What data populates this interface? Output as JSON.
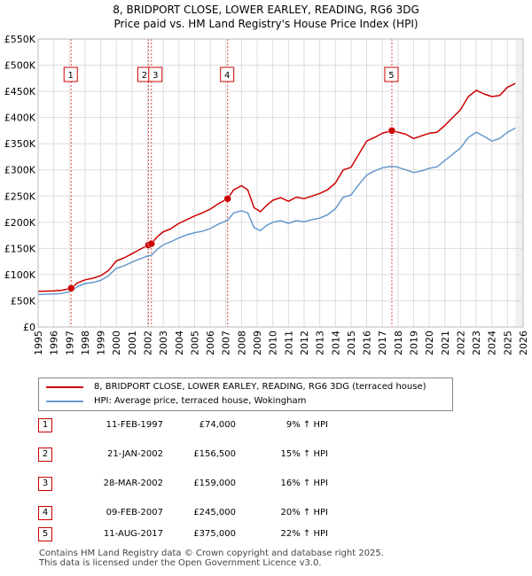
{
  "title_line1": "8, BRIDPORT CLOSE, LOWER EARLEY, READING, RG6 3DG",
  "title_line2": "Price paid vs. HM Land Registry's House Price Index (HPI)",
  "colors": {
    "price": "#cc0000",
    "hpi": "#6699cc",
    "marker": "#cc0000",
    "grid": "#dddddd"
  },
  "chart_data": {
    "type": "line",
    "x_range": [
      1995,
      2026
    ],
    "ylim": [
      0,
      550000
    ],
    "y_ticks": [
      0,
      50000,
      100000,
      150000,
      200000,
      250000,
      300000,
      350000,
      400000,
      450000,
      500000,
      550000
    ],
    "y_tick_labels": [
      "£0",
      "£50K",
      "£100K",
      "£150K",
      "£200K",
      "£250K",
      "£300K",
      "£350K",
      "£400K",
      "£450K",
      "£500K",
      "£550K"
    ],
    "x_ticks": [
      1995,
      1996,
      1997,
      1998,
      1999,
      2000,
      2001,
      2002,
      2003,
      2004,
      2005,
      2006,
      2007,
      2008,
      2009,
      2010,
      2011,
      2012,
      2013,
      2014,
      2015,
      2016,
      2017,
      2018,
      2019,
      2020,
      2021,
      2022,
      2023,
      2024,
      2025,
      2026
    ],
    "x_tick_labels": [
      "1995",
      "1996",
      "1997",
      "1998",
      "1999",
      "2000",
      "2001",
      "2002",
      "2003",
      "2004",
      "2005",
      "2006",
      "2007",
      "2008",
      "2009",
      "2010",
      "2011",
      "2012",
      "2013",
      "2014",
      "2015",
      "2016",
      "2017",
      "2018",
      "2019",
      "2020",
      "2021",
      "2022",
      "2023",
      "2024",
      "2025",
      "2026"
    ],
    "grid": true,
    "series": [
      {
        "name": "8, BRIDPORT CLOSE, LOWER EARLEY, READING, RG6 3DG (terraced house)",
        "x": [
          1995.0,
          1996.0,
          1996.5,
          1997.11,
          1997.5,
          1998.0,
          1998.5,
          1999.0,
          1999.5,
          2000.0,
          2000.5,
          2001.0,
          2001.5,
          2002.05,
          2002.24,
          2002.6,
          2003.0,
          2003.5,
          2004.0,
          2004.5,
          2005.0,
          2005.5,
          2006.0,
          2006.5,
          2007.11,
          2007.5,
          2008.0,
          2008.4,
          2008.8,
          2009.2,
          2009.6,
          2010.0,
          2010.5,
          2011.0,
          2011.5,
          2012.0,
          2012.5,
          2013.0,
          2013.5,
          2014.0,
          2014.5,
          2015.0,
          2015.5,
          2016.0,
          2016.5,
          2017.0,
          2017.61,
          2018.0,
          2018.5,
          2019.0,
          2019.5,
          2020.0,
          2020.5,
          2021.0,
          2021.5,
          2022.0,
          2022.5,
          2023.0,
          2023.5,
          2024.0,
          2024.5,
          2025.0,
          2025.5
        ],
        "y": [
          68000,
          69000,
          70000,
          74000,
          84000,
          90000,
          93000,
          98000,
          108000,
          126000,
          132000,
          140000,
          148000,
          156500,
          159000,
          172000,
          182000,
          188000,
          198000,
          205000,
          212000,
          218000,
          225000,
          235000,
          245000,
          262000,
          270000,
          262000,
          228000,
          220000,
          232000,
          242000,
          247000,
          240000,
          248000,
          245000,
          250000,
          255000,
          262000,
          275000,
          300000,
          305000,
          330000,
          355000,
          362000,
          370000,
          375000,
          372000,
          368000,
          360000,
          365000,
          370000,
          372000,
          385000,
          400000,
          415000,
          440000,
          452000,
          445000,
          440000,
          442000,
          458000,
          465000
        ]
      },
      {
        "name": "HPI: Average price, terraced house, Wokingham",
        "x": [
          1995.0,
          1996.0,
          1996.5,
          1997.11,
          1997.5,
          1998.0,
          1998.5,
          1999.0,
          1999.5,
          2000.0,
          2000.5,
          2001.0,
          2001.5,
          2002.05,
          2002.24,
          2002.6,
          2003.0,
          2003.5,
          2004.0,
          2004.5,
          2005.0,
          2005.5,
          2006.0,
          2006.5,
          2007.11,
          2007.5,
          2008.0,
          2008.4,
          2008.8,
          2009.2,
          2009.6,
          2010.0,
          2010.5,
          2011.0,
          2011.5,
          2012.0,
          2012.5,
          2013.0,
          2013.5,
          2014.0,
          2014.5,
          2015.0,
          2015.5,
          2016.0,
          2016.5,
          2017.0,
          2017.61,
          2018.0,
          2018.5,
          2019.0,
          2019.5,
          2020.0,
          2020.5,
          2021.0,
          2021.5,
          2022.0,
          2022.5,
          2023.0,
          2023.5,
          2024.0,
          2024.5,
          2025.0,
          2025.5
        ],
        "y": [
          62000,
          63000,
          64000,
          68000,
          77000,
          83000,
          85000,
          89000,
          98000,
          112000,
          117000,
          124000,
          130000,
          136000,
          137000,
          148000,
          157000,
          163000,
          170000,
          176000,
          180000,
          183000,
          188000,
          196000,
          204000,
          218000,
          222000,
          218000,
          190000,
          184000,
          194000,
          200000,
          203000,
          198000,
          203000,
          201000,
          205000,
          208000,
          214000,
          226000,
          248000,
          252000,
          272000,
          290000,
          298000,
          304000,
          307000,
          305000,
          300000,
          295000,
          298000,
          303000,
          306000,
          318000,
          330000,
          342000,
          362000,
          372000,
          364000,
          355000,
          360000,
          372000,
          380000
        ]
      }
    ],
    "sale_markers": [
      {
        "label": "1",
        "x": 1997.11,
        "y": 74000
      },
      {
        "label": "2",
        "x": 2002.05,
        "y": 156500
      },
      {
        "label": "3",
        "x": 2002.24,
        "y": 159000
      },
      {
        "label": "4",
        "x": 2007.11,
        "y": 245000
      },
      {
        "label": "5",
        "x": 2017.61,
        "y": 375000
      }
    ],
    "projection_start": 2025.5
  },
  "legend": {
    "price_label": "8, BRIDPORT CLOSE, LOWER EARLEY, READING, RG6 3DG (terraced house)",
    "hpi_label": "HPI: Average price, terraced house, Wokingham"
  },
  "sales": [
    {
      "num": "1",
      "date": "11-FEB-1997",
      "price": "£74,000",
      "hpi": "9% ↑ HPI"
    },
    {
      "num": "2",
      "date": "21-JAN-2002",
      "price": "£156,500",
      "hpi": "15% ↑ HPI"
    },
    {
      "num": "3",
      "date": "28-MAR-2002",
      "price": "£159,000",
      "hpi": "16% ↑ HPI"
    },
    {
      "num": "4",
      "date": "09-FEB-2007",
      "price": "£245,000",
      "hpi": "20% ↑ HPI"
    },
    {
      "num": "5",
      "date": "11-AUG-2017",
      "price": "£375,000",
      "hpi": "22% ↑ HPI"
    }
  ],
  "footer": {
    "line1": "Contains HM Land Registry data © Crown copyright and database right 2025.",
    "line2": "This data is licensed under the Open Government Licence v3.0."
  }
}
